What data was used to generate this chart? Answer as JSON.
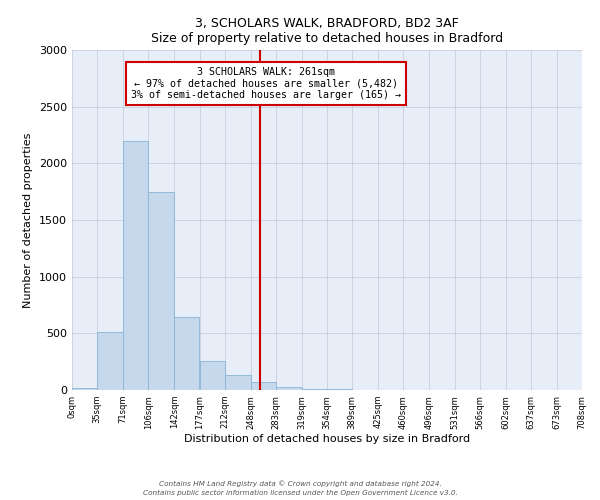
{
  "title": "3, SCHOLARS WALK, BRADFORD, BD2 3AF",
  "subtitle": "Size of property relative to detached houses in Bradford",
  "xlabel": "Distribution of detached houses by size in Bradford",
  "ylabel": "Number of detached properties",
  "bar_edges": [
    0,
    35,
    71,
    106,
    142,
    177,
    212,
    248,
    283,
    319,
    354,
    389,
    425,
    460,
    496,
    531,
    566,
    602,
    637,
    673,
    708
  ],
  "bar_heights": [
    20,
    510,
    2200,
    1750,
    640,
    260,
    130,
    70,
    30,
    10,
    5,
    2,
    1,
    0,
    0,
    0,
    0,
    0,
    0,
    0
  ],
  "bar_color": "#c6d9ec",
  "bar_edge_color": "#8ab4d4",
  "vline_x": 261,
  "vline_color": "#cc0000",
  "annotation_title": "3 SCHOLARS WALK: 261sqm",
  "annotation_line1": "← 97% of detached houses are smaller (5,482)",
  "annotation_line2": "3% of semi-detached houses are larger (165) →",
  "annotation_box_color": "#cc0000",
  "ylim": [
    0,
    3000
  ],
  "yticks": [
    0,
    500,
    1000,
    1500,
    2000,
    2500,
    3000
  ],
  "background_color": "#ffffff",
  "axes_bg_color": "#e8eef8",
  "grid_color": "#c0c8d8",
  "tick_labels": [
    "0sqm",
    "35sqm",
    "71sqm",
    "106sqm",
    "142sqm",
    "177sqm",
    "212sqm",
    "248sqm",
    "283sqm",
    "319sqm",
    "354sqm",
    "389sqm",
    "425sqm",
    "460sqm",
    "496sqm",
    "531sqm",
    "566sqm",
    "602sqm",
    "637sqm",
    "673sqm",
    "708sqm"
  ],
  "footnote1": "Contains HM Land Registry data © Crown copyright and database right 2024.",
  "footnote2": "Contains public sector information licensed under the Open Government Licence v3.0."
}
